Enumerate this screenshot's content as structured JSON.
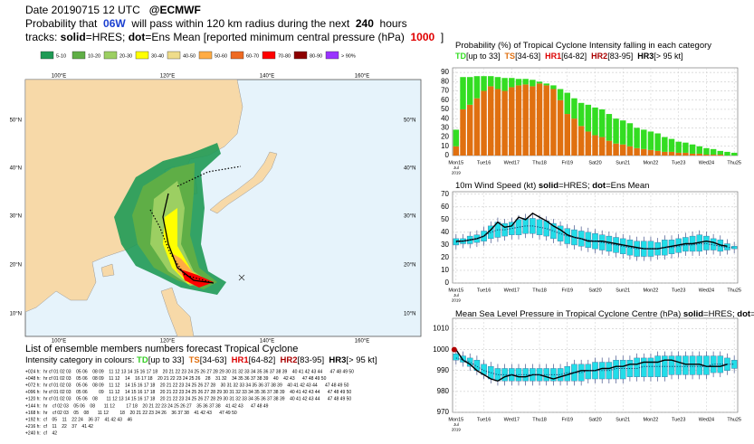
{
  "header": {
    "line1": [
      {
        "text": "Date 20190715 12 UTC   "
      },
      {
        "text": "@ECMWF",
        "bold": true
      }
    ],
    "line2": [
      {
        "text": "Probability that  "
      },
      {
        "text": "06W",
        "bold": true,
        "color": "#1a3fd0"
      },
      {
        "text": "  will pass within 120 km radius during the next  "
      },
      {
        "text": "240",
        "bold": true
      },
      {
        "text": "  hours"
      }
    ],
    "line3": [
      {
        "text": "tracks: "
      },
      {
        "text": "solid",
        "bold": true
      },
      {
        "text": "=HRES; "
      },
      {
        "text": "dot",
        "bold": true
      },
      {
        "text": "=Ens Mean [reported minimum central pressure (hPa)  "
      },
      {
        "text": "1000",
        "bold": true,
        "color": "#e00000"
      },
      {
        "text": "  ]"
      }
    ]
  },
  "prob_legend": [
    {
      "label": "5-10",
      "color": "#1f9a55"
    },
    {
      "label": "10-20",
      "color": "#5fae46"
    },
    {
      "label": "20-30",
      "color": "#9ccf62"
    },
    {
      "label": "30-40",
      "color": "#ffff00"
    },
    {
      "label": "40-50",
      "color": "#efdc8a"
    },
    {
      "label": "50-60",
      "color": "#ffac45"
    },
    {
      "label": "60-70",
      "color": "#ee6a22"
    },
    {
      "label": "70-80",
      "color": "#ff0000"
    },
    {
      "label": "80-90",
      "color": "#8c0000"
    },
    {
      "label": "> 90%",
      "color": "#9933ff"
    }
  ],
  "map": {
    "lon_labels": [
      "100°E",
      "120°E",
      "140°E",
      "160°E"
    ],
    "lat_labels": [
      "50°N",
      "40°N",
      "30°N",
      "20°N",
      "10°N"
    ]
  },
  "members": {
    "title": "List of ensemble members numbers forecast Tropical Cyclone",
    "intensity": [
      {
        "text": "Intensity category in colours: "
      },
      {
        "text": "TD",
        "bold": true,
        "color": "#33cc22"
      },
      {
        "text": "[up to 33]  "
      },
      {
        "text": "TS",
        "bold": true,
        "color": "#e07010"
      },
      {
        "text": "[34-63]  "
      },
      {
        "text": "HR1",
        "bold": true,
        "color": "#dd0000"
      },
      {
        "text": "[64-82]  "
      },
      {
        "text": "HR2",
        "bold": true,
        "color": "#aa0000"
      },
      {
        "text": "[83-95]  "
      },
      {
        "text": "HR3",
        "bold": true
      },
      {
        "text": "[> 95 kt]"
      }
    ],
    "rows": [
      {
        "label": "+024 h:",
        "text": "hr cf 01 02 03    05 06    08 09    11 12 13 14 15 16 17 18    20 21 22 23 24 25 26 27 28 29 30 31 32 33 34 35 36 37 38 39    40 41 42 43 44      47 48 49 50",
        "color": "#e07010"
      },
      {
        "label": "+048 h:",
        "text": "hr cf 01 02 03    05 06    08 09    11 12    14    16 17 18    20 21 22 23 24 25 26    28    31 32    34 35 36 37 38 39    40    42 43      47 48 49 50",
        "color": "#e07010"
      },
      {
        "label": "+072 h:",
        "text": "hr cf 01 02 03    05 06    08 09    11 12    14 15 16 17 18    20 21 22 23 24 25 26 27 28    30 31 32 33 34 35 36 37 38 39    40 41 42 43 44      47 48 49 50",
        "color": "#e07010"
      },
      {
        "label": "+096 h:",
        "text": "hr cf 01 02 03    05 06         09    11 12    14 15 16 17 18    20 21 22 23 24 25 26 27 28 29 30 31 32 33 34 35 36 37 38 39    40 41 42 43 44      47 48 49 50",
        "color": "#e07010"
      },
      {
        "label": "+120 h:",
        "text": "hr cf 01 02 03    05 06    08       11 12 13 14 15 16 17 18    20 21 22 23 24 25 26 27 28 29 30 31 32 33 34 35 36 37 38 39    40 41 42 43 44      47 48 49 50",
        "color": "#55bb33"
      },
      {
        "label": "+144 h:",
        "text": "hr    cf 02 03    05 06    08       11 12         17 18    20 21 22 23 24 25 26 27    35 36 37 38    41 42 43      47 48 49",
        "color": "#55bb33"
      },
      {
        "label": "+168 h:",
        "text": "hr    cf 02 03    05    08       11 12         18    20 21 22 23 24 26    36 37 38    41 42 43      47 49 50",
        "color": "#55bb33"
      },
      {
        "label": "+192 h:",
        "text": "cf    05    11    22 24    36 37    41 42 43    46",
        "color": "#55bb33"
      },
      {
        "label": "+216 h:",
        "text": "cf    11    22    37    41 42",
        "color": "#55bb33"
      },
      {
        "label": "+240 h:",
        "text": "cf    42",
        "color": "#55bb33"
      }
    ]
  },
  "chart_data": [
    {
      "type": "bar",
      "stacked": true,
      "title": [
        {
          "text": "Probability (%) of Tropical Cyclone Intensity falling in each category"
        }
      ],
      "categories": [
        "Mon15",
        null,
        null,
        null,
        "Tue16",
        null,
        null,
        null,
        "Wed17",
        null,
        null,
        null,
        "Thu18",
        null,
        null,
        null,
        "Fri19",
        null,
        null,
        null,
        "Sat20",
        null,
        null,
        null,
        "Sun21",
        null,
        null,
        null,
        "Mon22",
        null,
        null,
        null,
        "Tue23",
        null,
        null,
        null,
        "Wed24",
        null,
        null,
        null,
        "Thu25"
      ],
      "x_sublabels": [
        "Jul",
        "2019"
      ],
      "label_highlight": {
        "index": 24,
        "color": "#dd0000"
      },
      "series": [
        {
          "name": "TS",
          "range": "[34-63]",
          "color": "#e07010",
          "values": [
            10,
            50,
            55,
            62,
            70,
            75,
            72,
            70,
            74,
            76,
            77,
            75,
            78,
            76,
            72,
            60,
            45,
            40,
            32,
            26,
            22,
            20,
            16,
            13,
            12,
            10,
            8,
            7,
            6,
            5,
            4,
            4,
            3,
            3,
            2,
            2,
            1,
            1,
            1,
            0,
            0
          ]
        },
        {
          "name": "TD",
          "range": "[up to 33]",
          "color": "#33dd22",
          "values": [
            18,
            35,
            30,
            24,
            16,
            11,
            13,
            14,
            10,
            7,
            6,
            7,
            2,
            2,
            4,
            12,
            23,
            22,
            25,
            29,
            30,
            30,
            29,
            27,
            26,
            25,
            22,
            21,
            20,
            19,
            16,
            14,
            12,
            11,
            10,
            8,
            7,
            6,
            4,
            4,
            3
          ]
        }
      ],
      "other_categories": [
        {
          "name": "HR1",
          "range": "[64-82]",
          "color": "#dd0000"
        },
        {
          "name": "HR2",
          "range": "[83-95]",
          "color": "#aa0000"
        },
        {
          "name": "HR3",
          "range": "[> 95 kt]",
          "color": "#000000"
        }
      ],
      "ylim": [
        0,
        95
      ],
      "yticks": [
        0,
        10,
        20,
        30,
        40,
        50,
        60,
        70,
        80,
        90
      ],
      "grid": true
    },
    {
      "type": "line",
      "title": [
        {
          "text": "10m Wind Speed (kt) "
        },
        {
          "text": "solid",
          "bold": true
        },
        {
          "text": "=HRES; "
        },
        {
          "text": "dot",
          "bold": true
        },
        {
          "text": "=Ens Mean"
        }
      ],
      "categories": [
        "Mon15",
        null,
        null,
        null,
        "Tue16",
        null,
        null,
        null,
        "Wed17",
        null,
        null,
        null,
        "Thu18",
        null,
        null,
        null,
        "Fri19",
        null,
        null,
        null,
        "Sat20",
        null,
        null,
        null,
        "Sun21",
        null,
        null,
        null,
        "Mon22",
        null,
        null,
        null,
        "Tue23",
        null,
        null,
        null,
        "Wed24",
        null,
        null,
        null,
        "Thu25"
      ],
      "x_sublabels": [
        "Jul",
        "2019"
      ],
      "label_highlight": {
        "index": 24,
        "color": "#dd0000"
      },
      "boxes": {
        "color": "#22dde8",
        "low": [
          30,
          31,
          31,
          32,
          33,
          35,
          36,
          37,
          38,
          38,
          39,
          39,
          38,
          37,
          35,
          33,
          31,
          30,
          29,
          28,
          27,
          26,
          25,
          24,
          23,
          22,
          21,
          21,
          21,
          22,
          22,
          23,
          24,
          25,
          25,
          25,
          26,
          26,
          25,
          26,
          27
        ],
        "high": [
          35,
          35,
          37,
          38,
          41,
          45,
          48,
          47,
          48,
          50,
          51,
          51,
          50,
          49,
          47,
          45,
          43,
          42,
          41,
          40,
          39,
          38,
          37,
          36,
          35,
          34,
          33,
          33,
          33,
          32,
          34,
          34,
          35,
          36,
          37,
          38,
          37,
          35,
          34,
          31,
          29
        ]
      },
      "series": [
        {
          "name": "HRES",
          "color": "#000000",
          "dash": false,
          "values": [
            33,
            33,
            34,
            35,
            37,
            42,
            48,
            44,
            45,
            52,
            50,
            55,
            52,
            49,
            45,
            42,
            38,
            36,
            35,
            33,
            33,
            33,
            32,
            31,
            30,
            29,
            28,
            27,
            27,
            27,
            28,
            29,
            30,
            31,
            31,
            32,
            33,
            32,
            30,
            29,
            null
          ]
        },
        {
          "name": "Ens Mean",
          "color": "#1a3a6a",
          "dash": true,
          "values": [
            32,
            33,
            34,
            35,
            37,
            40,
            42,
            42,
            43,
            44,
            45,
            45,
            44,
            43,
            41,
            39,
            37,
            36,
            35,
            34,
            33,
            32,
            31,
            30,
            29,
            28,
            27,
            27,
            27,
            27,
            28,
            28,
            29,
            30,
            30,
            31,
            31,
            30,
            29,
            28,
            28
          ]
        }
      ],
      "ylim": [
        0,
        72
      ],
      "yticks": [
        0,
        10,
        20,
        30,
        40,
        50,
        60,
        70
      ],
      "grid": true
    },
    {
      "type": "line",
      "title": [
        {
          "text": "Mean Sea Level Pressure in Tropical Cyclone Centre (hPa) "
        },
        {
          "text": "solid",
          "bold": true
        },
        {
          "text": "=HRES; "
        },
        {
          "text": "dot",
          "bold": true
        },
        {
          "text": "=Ens Mean"
        }
      ],
      "categories": [
        "Mon15",
        null,
        null,
        null,
        "Tue16",
        null,
        null,
        null,
        "Wed17",
        null,
        null,
        null,
        "Thu18",
        null,
        null,
        null,
        "Fri19",
        null,
        null,
        null,
        "Sat20",
        null,
        null,
        null,
        "Sun21",
        null,
        null,
        null,
        "Mon22",
        null,
        null,
        null,
        "Tue23",
        null,
        null,
        null,
        "Wed24",
        null,
        null,
        null,
        "Thu25"
      ],
      "x_sublabels": [
        "Jul",
        "2019"
      ],
      "label_highlight": {
        "index": 24,
        "color": "#dd0000"
      },
      "boxes": {
        "color": "#22dde8",
        "low": [
          995,
          994,
          992,
          990,
          988,
          986,
          985,
          985,
          985,
          985,
          985,
          985,
          985,
          985,
          985,
          985,
          985,
          985,
          985,
          986,
          986,
          986,
          986,
          986,
          986,
          987,
          987,
          987,
          987,
          987,
          987,
          988,
          988,
          988,
          988,
          988,
          988,
          989,
          989,
          990,
          991
        ],
        "high": [
          998,
          997,
          996,
          995,
          993,
          992,
          991,
          991,
          991,
          991,
          991,
          991,
          991,
          991,
          991,
          991,
          992,
          993,
          993,
          993,
          994,
          994,
          994,
          995,
          995,
          995,
          996,
          996,
          996,
          997,
          997,
          997,
          997,
          997,
          997,
          997,
          997,
          997,
          997,
          996,
          995
        ]
      },
      "series": [
        {
          "name": "HRES",
          "color": "#000000",
          "dash": false,
          "values": [
            1000,
            995,
            993,
            990,
            988,
            986,
            985,
            987,
            988,
            987,
            987,
            988,
            988,
            987,
            986,
            987,
            988,
            989,
            990,
            990,
            990,
            991,
            991,
            992,
            992,
            993,
            993,
            994,
            994,
            994,
            995,
            995,
            994,
            993,
            993,
            993,
            992,
            992,
            992,
            993,
            null
          ]
        },
        {
          "name": "Ens Mean",
          "color": "#1a3a6a",
          "dash": true,
          "values": [
            996,
            995,
            994,
            992,
            990,
            989,
            988,
            988,
            988,
            988,
            988,
            988,
            988,
            988,
            988,
            988,
            989,
            989,
            989,
            990,
            990,
            990,
            990,
            991,
            991,
            991,
            991,
            992,
            992,
            992,
            992,
            992,
            992,
            992,
            992,
            992,
            992,
            993,
            993,
            993,
            993
          ]
        }
      ],
      "ylim": [
        970,
        1015
      ],
      "yticks": [
        970,
        980,
        990,
        1000,
        1010
      ],
      "grid": true
    }
  ]
}
